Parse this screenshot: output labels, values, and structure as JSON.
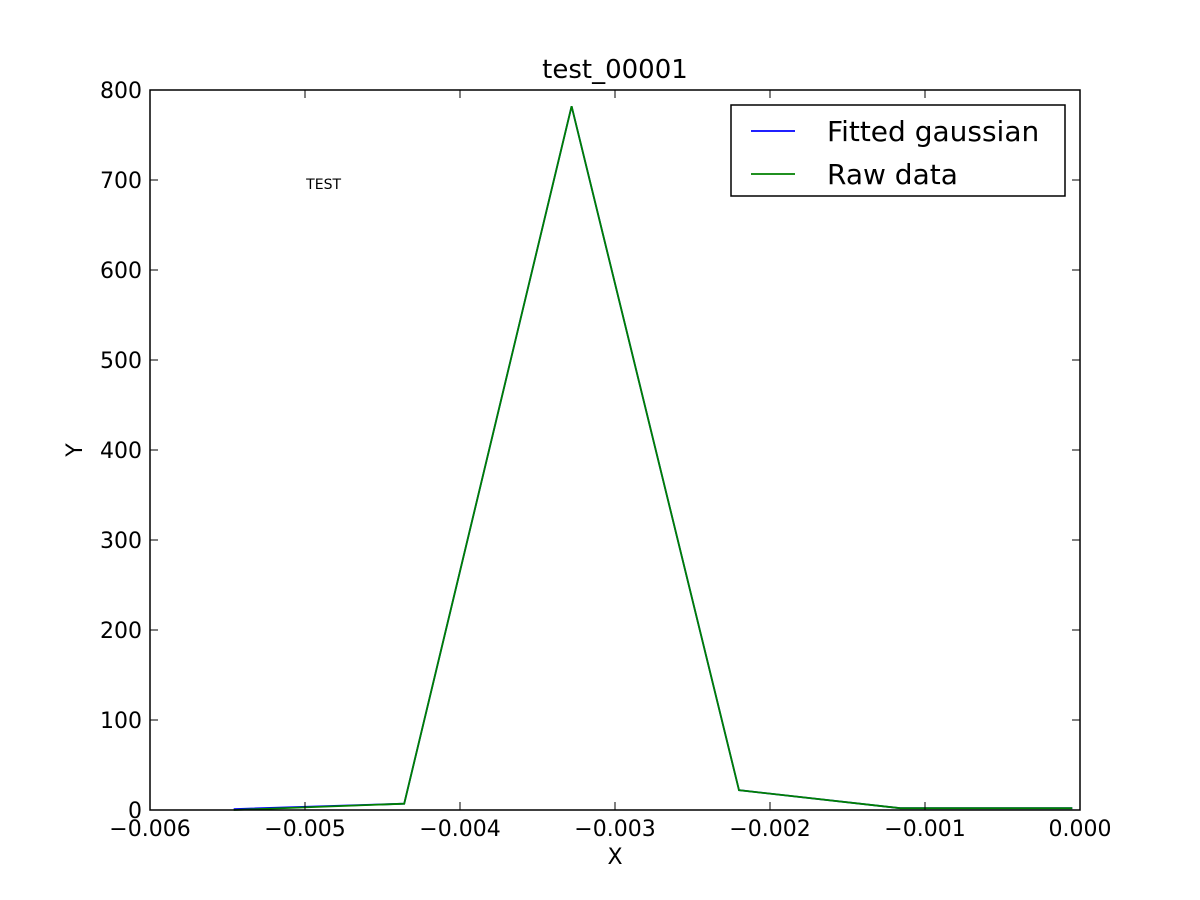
{
  "chart_data": {
    "type": "line",
    "title": "test_00001",
    "xlabel": "X",
    "ylabel": "Y",
    "xlim": [
      -0.006,
      0.0
    ],
    "ylim": [
      0,
      800
    ],
    "xticks": [
      -0.006,
      -0.005,
      -0.004,
      -0.003,
      -0.002,
      -0.001,
      0.0
    ],
    "xtick_labels": [
      "−0.006",
      "−0.005",
      "−0.004",
      "−0.003",
      "−0.002",
      "−0.001",
      "0.000"
    ],
    "yticks": [
      0,
      100,
      200,
      300,
      400,
      500,
      600,
      700,
      800
    ],
    "ytick_labels": [
      "0",
      "100",
      "200",
      "300",
      "400",
      "500",
      "600",
      "700",
      "800"
    ],
    "grid": false,
    "legend_position": "top-right",
    "annotations": [
      {
        "text": "TEST",
        "x": -0.00488,
        "y": 690
      }
    ],
    "series": [
      {
        "name": "Fitted gaussian",
        "color": "#0000ff",
        "x": [
          -0.00546,
          -0.00436,
          -0.00328,
          -0.0022,
          -0.00116,
          -5e-05
        ],
        "y": [
          1,
          7,
          782,
          22,
          2,
          2
        ]
      },
      {
        "name": "Raw data",
        "color": "#008000",
        "x": [
          -0.00546,
          -0.00436,
          -0.00328,
          -0.0022,
          -0.00116,
          -5e-05
        ],
        "y": [
          0,
          7,
          782,
          22,
          2,
          2
        ]
      }
    ]
  }
}
